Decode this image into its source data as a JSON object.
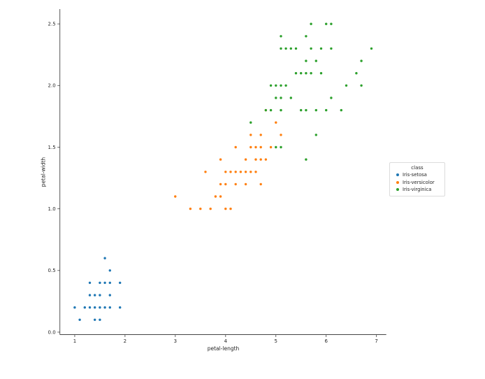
{
  "chart_data": {
    "type": "scatter",
    "title": "",
    "xlabel": "petal-length",
    "ylabel": "petal-width",
    "legend_title": "class",
    "legend_position": "center right",
    "grid": false,
    "xlim": [
      0.705,
      7.195
    ],
    "ylim": [
      -0.02,
      2.62
    ],
    "xticks": [
      1,
      2,
      3,
      4,
      5,
      6,
      7
    ],
    "xtick_labels": [
      "1",
      "2",
      "3",
      "4",
      "5",
      "6",
      "7"
    ],
    "yticks": [
      0.0,
      0.5,
      1.0,
      1.5,
      2.0,
      2.5
    ],
    "ytick_labels": [
      "0.0",
      "0.5",
      "1.0",
      "1.5",
      "2.0",
      "2.5"
    ],
    "marker_radius_px": 1.7,
    "axis_color": "#444444",
    "text_color": "#262626",
    "series": [
      {
        "name": "Iris-setosa",
        "color": "#1f77b4",
        "points": [
          [
            1.0,
            0.2
          ],
          [
            1.1,
            0.1
          ],
          [
            1.2,
            0.2
          ],
          [
            1.3,
            0.2
          ],
          [
            1.3,
            0.3
          ],
          [
            1.3,
            0.4
          ],
          [
            1.4,
            0.1
          ],
          [
            1.4,
            0.2
          ],
          [
            1.4,
            0.3
          ],
          [
            1.5,
            0.1
          ],
          [
            1.5,
            0.2
          ],
          [
            1.5,
            0.3
          ],
          [
            1.5,
            0.4
          ],
          [
            1.6,
            0.2
          ],
          [
            1.6,
            0.4
          ],
          [
            1.6,
            0.6
          ],
          [
            1.7,
            0.2
          ],
          [
            1.7,
            0.3
          ],
          [
            1.7,
            0.4
          ],
          [
            1.7,
            0.5
          ],
          [
            1.9,
            0.2
          ],
          [
            1.9,
            0.4
          ]
        ]
      },
      {
        "name": "Iris-versicolor",
        "color": "#ff7f0e",
        "points": [
          [
            3.0,
            1.1
          ],
          [
            3.3,
            1.0
          ],
          [
            3.5,
            1.0
          ],
          [
            3.6,
            1.3
          ],
          [
            3.7,
            1.0
          ],
          [
            3.8,
            1.1
          ],
          [
            3.9,
            1.1
          ],
          [
            3.9,
            1.2
          ],
          [
            3.9,
            1.4
          ],
          [
            4.0,
            1.0
          ],
          [
            4.0,
            1.2
          ],
          [
            4.0,
            1.3
          ],
          [
            4.1,
            1.0
          ],
          [
            4.1,
            1.3
          ],
          [
            4.2,
            1.2
          ],
          [
            4.2,
            1.3
          ],
          [
            4.2,
            1.5
          ],
          [
            4.3,
            1.3
          ],
          [
            4.4,
            1.2
          ],
          [
            4.4,
            1.3
          ],
          [
            4.4,
            1.4
          ],
          [
            4.5,
            1.3
          ],
          [
            4.5,
            1.5
          ],
          [
            4.5,
            1.6
          ],
          [
            4.6,
            1.3
          ],
          [
            4.6,
            1.4
          ],
          [
            4.6,
            1.5
          ],
          [
            4.7,
            1.2
          ],
          [
            4.7,
            1.4
          ],
          [
            4.7,
            1.5
          ],
          [
            4.7,
            1.6
          ],
          [
            4.8,
            1.4
          ],
          [
            4.8,
            1.8
          ],
          [
            4.9,
            1.5
          ],
          [
            5.0,
            1.7
          ],
          [
            5.1,
            1.6
          ]
        ]
      },
      {
        "name": "Iris-virginica",
        "color": "#2ca02c",
        "points": [
          [
            4.5,
            1.7
          ],
          [
            4.8,
            1.8
          ],
          [
            4.9,
            1.8
          ],
          [
            4.9,
            2.0
          ],
          [
            5.0,
            1.5
          ],
          [
            5.0,
            1.9
          ],
          [
            5.0,
            2.0
          ],
          [
            5.1,
            1.5
          ],
          [
            5.1,
            1.8
          ],
          [
            5.1,
            1.9
          ],
          [
            5.1,
            2.0
          ],
          [
            5.1,
            2.3
          ],
          [
            5.1,
            2.4
          ],
          [
            5.2,
            2.0
          ],
          [
            5.2,
            2.3
          ],
          [
            5.3,
            1.9
          ],
          [
            5.3,
            2.3
          ],
          [
            5.4,
            2.1
          ],
          [
            5.4,
            2.3
          ],
          [
            5.5,
            1.8
          ],
          [
            5.5,
            2.1
          ],
          [
            5.6,
            1.4
          ],
          [
            5.6,
            1.8
          ],
          [
            5.6,
            2.1
          ],
          [
            5.6,
            2.2
          ],
          [
            5.6,
            2.4
          ],
          [
            5.7,
            2.1
          ],
          [
            5.7,
            2.3
          ],
          [
            5.7,
            2.5
          ],
          [
            5.8,
            1.6
          ],
          [
            5.8,
            1.8
          ],
          [
            5.8,
            2.2
          ],
          [
            5.9,
            2.1
          ],
          [
            5.9,
            2.3
          ],
          [
            6.0,
            1.8
          ],
          [
            6.0,
            2.5
          ],
          [
            6.1,
            1.9
          ],
          [
            6.1,
            2.3
          ],
          [
            6.1,
            2.5
          ],
          [
            6.3,
            1.8
          ],
          [
            6.4,
            2.0
          ],
          [
            6.6,
            2.1
          ],
          [
            6.7,
            2.0
          ],
          [
            6.7,
            2.2
          ],
          [
            6.9,
            2.3
          ]
        ]
      }
    ]
  }
}
